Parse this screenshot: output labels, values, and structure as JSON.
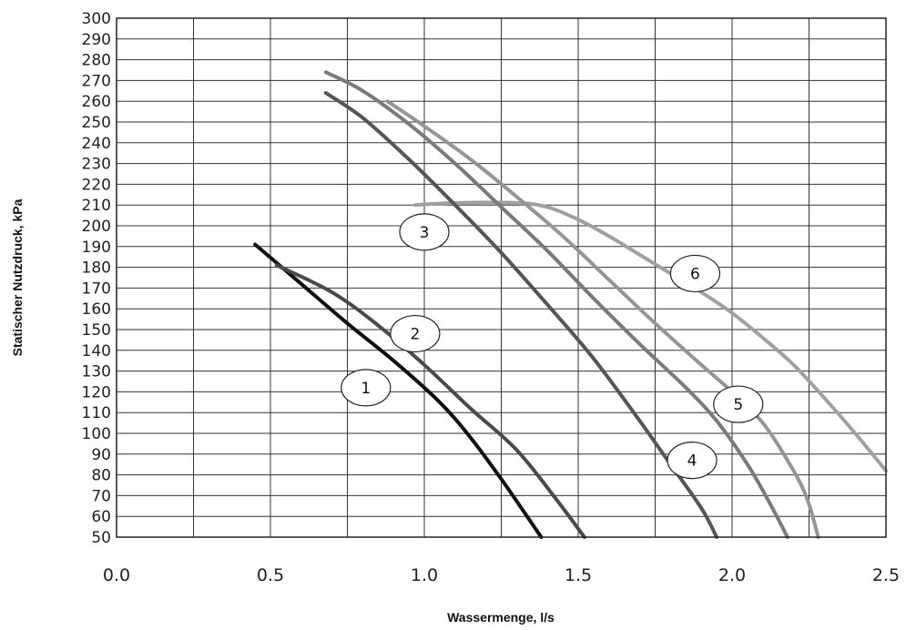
{
  "chart_data": {
    "type": "line",
    "title": "",
    "xlabel": "Wassermenge, l/s",
    "ylabel": "Statischer Nutzdruck, kPa",
    "xlim": [
      0,
      2.5
    ],
    "ylim": [
      50,
      300
    ],
    "x_ticks": [
      "0.0",
      "0.5",
      "1.0",
      "1.5",
      "2.0",
      "2.5"
    ],
    "y_ticks": [
      "50",
      "60",
      "70",
      "80",
      "90",
      "100",
      "110",
      "120",
      "130",
      "140",
      "150",
      "160",
      "170",
      "180",
      "190",
      "200",
      "210",
      "220",
      "230",
      "240",
      "250",
      "260",
      "270",
      "280",
      "290",
      "300"
    ],
    "grid": true,
    "series": [
      {
        "name": "1",
        "color": "#111111",
        "label_at": [
          0.81,
          122
        ],
        "points": [
          [
            0.45,
            191
          ],
          [
            0.6,
            172
          ],
          [
            0.75,
            153
          ],
          [
            0.9,
            135
          ],
          [
            1.05,
            115
          ],
          [
            1.15,
            98
          ],
          [
            1.25,
            78
          ],
          [
            1.32,
            63
          ],
          [
            1.38,
            50
          ]
        ]
      },
      {
        "name": "2",
        "color": "#4a4a4a",
        "label_at": [
          0.97,
          148
        ],
        "points": [
          [
            0.52,
            181
          ],
          [
            0.7,
            168
          ],
          [
            0.85,
            152
          ],
          [
            1.0,
            133
          ],
          [
            1.15,
            112
          ],
          [
            1.3,
            92
          ],
          [
            1.43,
            68
          ],
          [
            1.52,
            50
          ]
        ]
      },
      {
        "name": "3",
        "color": "#a0a0a0",
        "label_at": [
          1.0,
          197
        ],
        "points": [
          [
            0.97,
            210
          ],
          [
            1.1,
            211
          ],
          [
            1.3,
            211
          ],
          [
            1.4,
            209
          ],
          [
            1.5,
            203
          ],
          [
            1.6,
            195
          ],
          [
            1.7,
            186
          ],
          [
            1.8,
            177
          ],
          [
            1.9,
            168
          ],
          [
            2.0,
            158
          ],
          [
            2.1,
            146
          ],
          [
            2.2,
            133
          ],
          [
            2.3,
            117
          ],
          [
            2.4,
            100
          ],
          [
            2.5,
            82
          ]
        ]
      },
      {
        "name": "4",
        "color": "#555555",
        "label_at": [
          1.87,
          87
        ],
        "points": [
          [
            0.68,
            264
          ],
          [
            0.8,
            252
          ],
          [
            0.95,
            232
          ],
          [
            1.1,
            210
          ],
          [
            1.25,
            187
          ],
          [
            1.4,
            162
          ],
          [
            1.55,
            136
          ],
          [
            1.7,
            106
          ],
          [
            1.8,
            85
          ],
          [
            1.9,
            64
          ],
          [
            1.95,
            50
          ]
        ]
      },
      {
        "name": "5",
        "color": "#7a7a7a",
        "label_at": [
          2.02,
          114
        ],
        "points": [
          [
            0.68,
            274
          ],
          [
            0.8,
            265
          ],
          [
            0.95,
            249
          ],
          [
            1.1,
            230
          ],
          [
            1.25,
            209
          ],
          [
            1.4,
            188
          ],
          [
            1.55,
            165
          ],
          [
            1.7,
            143
          ],
          [
            1.85,
            122
          ],
          [
            1.95,
            106
          ],
          [
            2.05,
            85
          ],
          [
            2.12,
            67
          ],
          [
            2.18,
            50
          ]
        ]
      },
      {
        "name": "6",
        "color": "#959595",
        "label_at": [
          1.88,
          177
        ],
        "points": [
          [
            0.88,
            260
          ],
          [
            1.0,
            248
          ],
          [
            1.15,
            232
          ],
          [
            1.3,
            214
          ],
          [
            1.45,
            195
          ],
          [
            1.6,
            174
          ],
          [
            1.75,
            153
          ],
          [
            1.9,
            133
          ],
          [
            2.0,
            120
          ],
          [
            2.1,
            105
          ],
          [
            2.18,
            87
          ],
          [
            2.24,
            70
          ],
          [
            2.28,
            50
          ]
        ]
      }
    ]
  }
}
